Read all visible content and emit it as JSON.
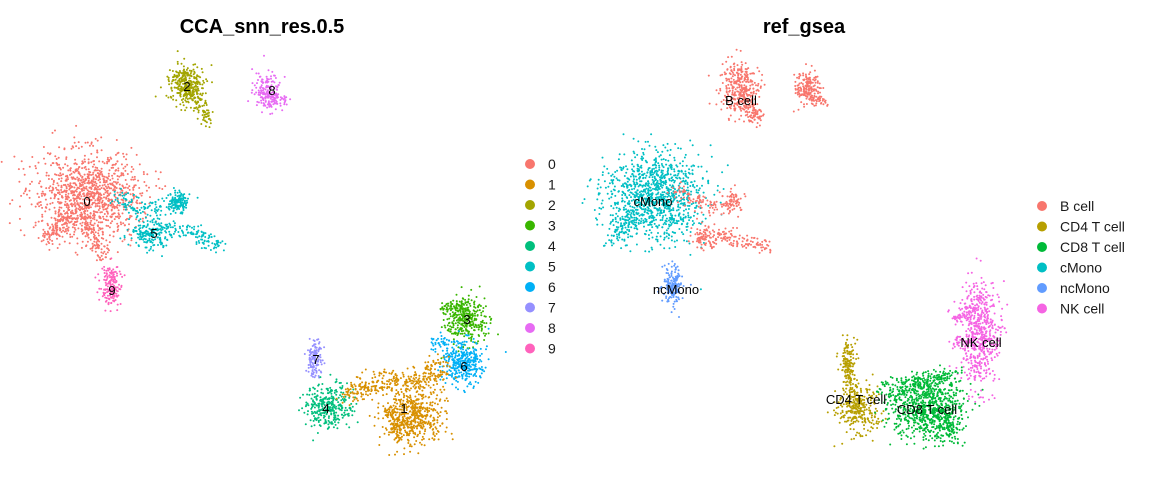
{
  "chart_data": [
    {
      "type": "scatter",
      "title": "CCA_snn_res.0.5",
      "xlabel": "",
      "ylabel": "",
      "grid": false,
      "legend_position": "right",
      "legend": [
        {
          "label": "0",
          "color": "#F8766D"
        },
        {
          "label": "1",
          "color": "#D89000"
        },
        {
          "label": "2",
          "color": "#A3A500"
        },
        {
          "label": "3",
          "color": "#39B600"
        },
        {
          "label": "4",
          "color": "#00BF7D"
        },
        {
          "label": "5",
          "color": "#00BFC4"
        },
        {
          "label": "6",
          "color": "#00B0F6"
        },
        {
          "label": "7",
          "color": "#9590FF"
        },
        {
          "label": "8",
          "color": "#E76BF3"
        },
        {
          "label": "9",
          "color": "#FF62BC"
        }
      ],
      "cluster_labels": [
        "2",
        "8",
        "0",
        "5",
        "9",
        "3",
        "7",
        "6",
        "4",
        "1"
      ]
    },
    {
      "type": "scatter",
      "title": "ref_gsea",
      "xlabel": "",
      "ylabel": "",
      "grid": false,
      "legend_position": "right",
      "legend": [
        {
          "label": "B cell",
          "color": "#F8766D"
        },
        {
          "label": "CD4 T cell",
          "color": "#B79F00"
        },
        {
          "label": "CD8 T cell",
          "color": "#00BA38"
        },
        {
          "label": "cMono",
          "color": "#00BFC4"
        },
        {
          "label": "ncMono",
          "color": "#619CFF"
        },
        {
          "label": "NK cell",
          "color": "#F564E3"
        }
      ],
      "cluster_labels": [
        "B cell",
        "cMono",
        "ncMono",
        "NK cell",
        "CD4 T cell",
        "CD8 T cell"
      ]
    }
  ]
}
